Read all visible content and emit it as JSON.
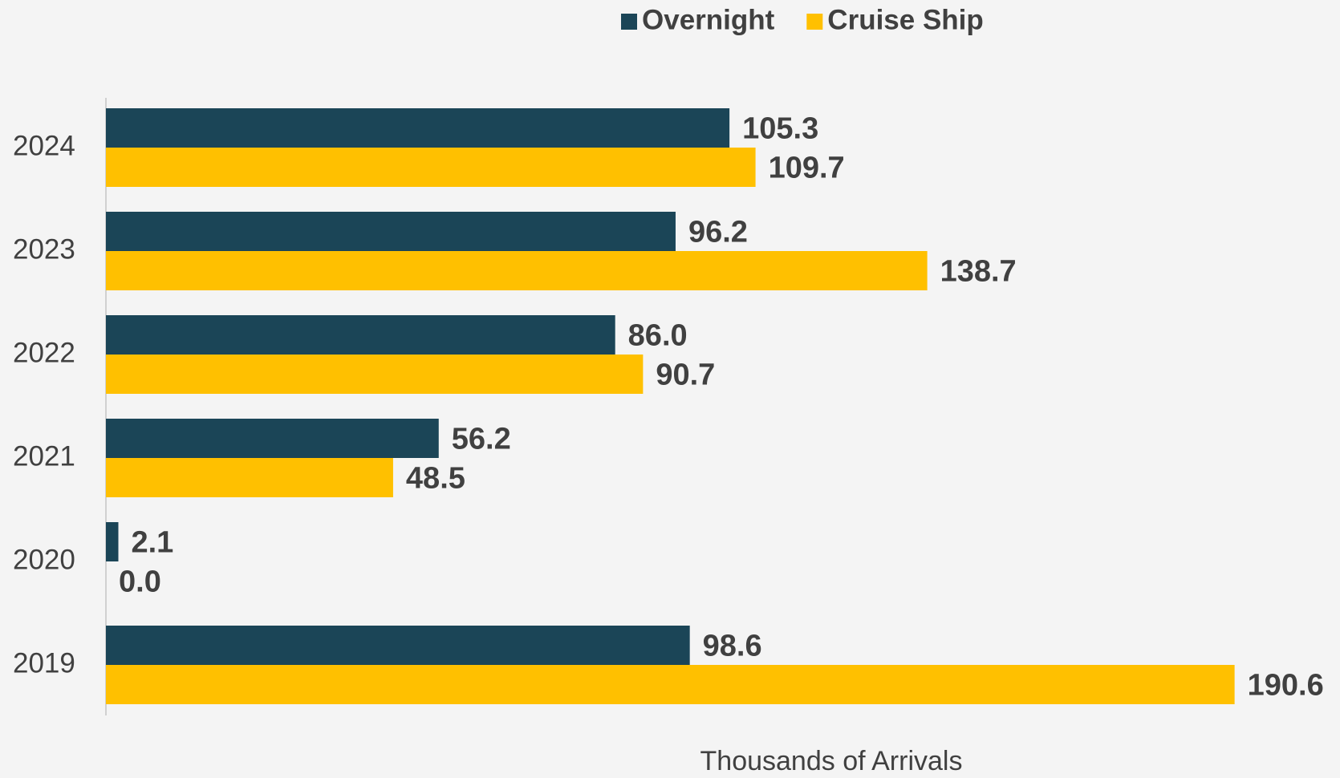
{
  "chart_data": {
    "type": "bar",
    "orientation": "horizontal",
    "x_label": "Thousands of Arrivals",
    "categories": [
      "2024",
      "2023",
      "2022",
      "2021",
      "2020",
      "2019"
    ],
    "series": [
      {
        "name": "Overnight",
        "color": "#1b4557",
        "values": [
          105.3,
          96.2,
          86.0,
          56.2,
          2.1,
          98.6
        ],
        "value_labels": [
          "105.3",
          "96.2",
          "86.0",
          "56.2",
          "2.1",
          "98.6"
        ]
      },
      {
        "name": "Cruise Ship",
        "color": "#ffc000",
        "values": [
          109.7,
          138.7,
          90.7,
          48.5,
          0.0,
          190.6
        ],
        "value_labels": [
          "109.7",
          "138.7",
          "90.7",
          "48.5",
          "0.0",
          "190.6"
        ]
      }
    ],
    "xlim": [
      0,
      200
    ],
    "legend": "top"
  }
}
